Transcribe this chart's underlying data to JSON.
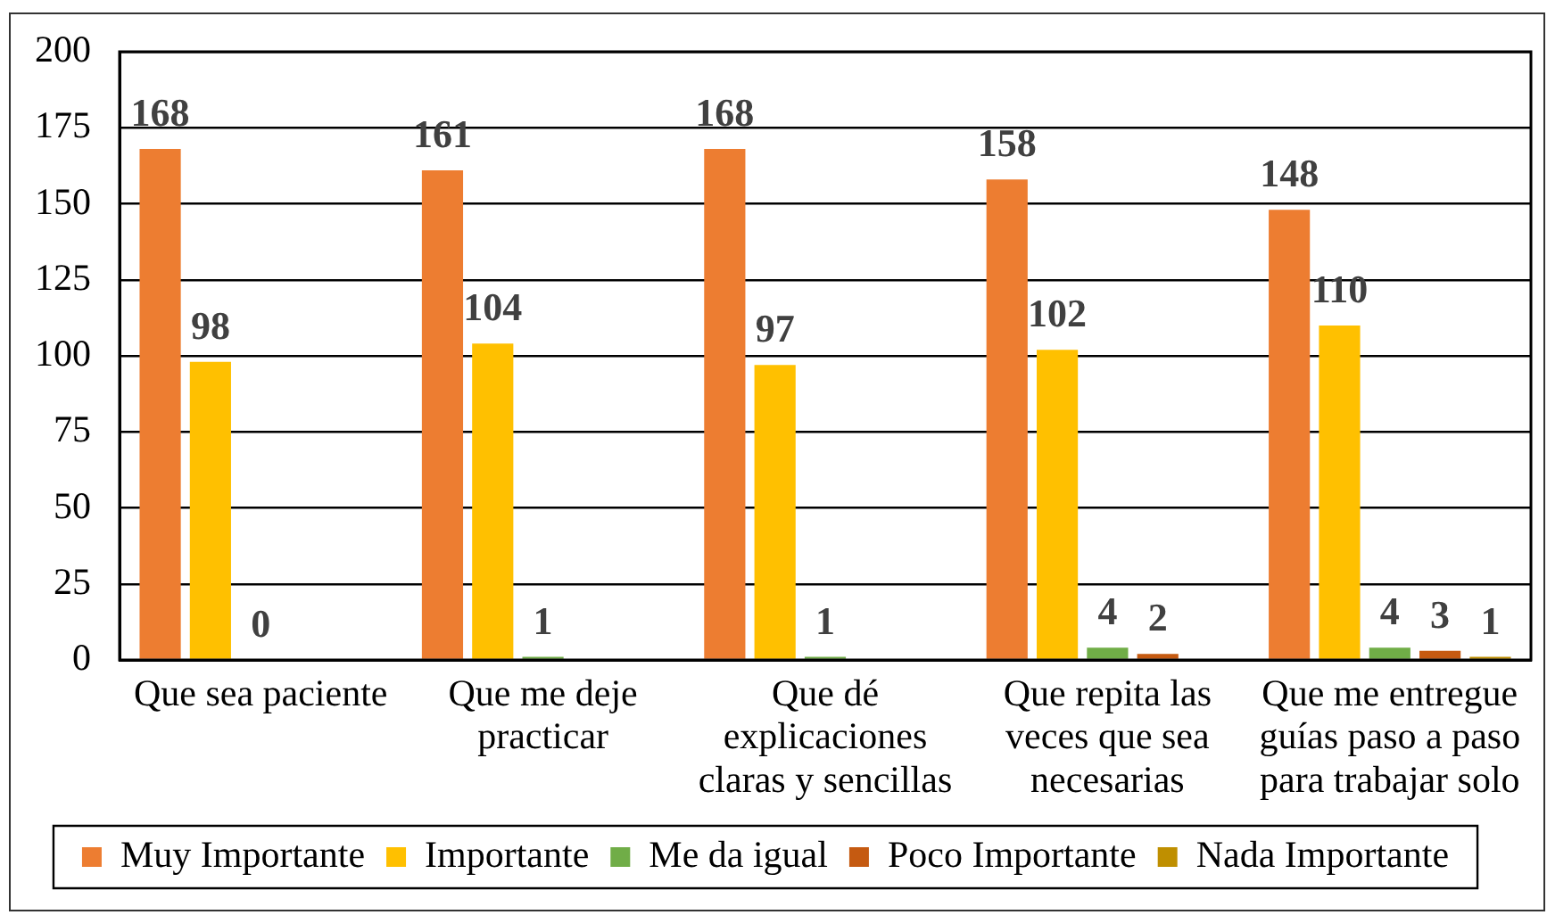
{
  "chart_data": {
    "type": "bar",
    "categories": [
      "Que sea paciente",
      "Que me deje practicar",
      "Que dé explicaciones claras y sencillas",
      "Que repita las veces que sea necesarias",
      "Que me entregue guías paso a paso para trabajar solo"
    ],
    "series": [
      {
        "name": "Muy Importante",
        "color": "#ed7d31",
        "values": [
          168,
          161,
          168,
          158,
          148
        ]
      },
      {
        "name": "Importante",
        "color": "#ffc000",
        "values": [
          98,
          104,
          97,
          102,
          110
        ]
      },
      {
        "name": "Me da igual",
        "color": "#70ad47",
        "values": [
          0,
          1,
          1,
          4,
          4
        ]
      },
      {
        "name": "Poco Importante",
        "color": "#c55a11",
        "values": [
          null,
          null,
          null,
          2,
          3
        ]
      },
      {
        "name": "Nada Importante",
        "color": "#bf8f00",
        "values": [
          null,
          null,
          null,
          null,
          1
        ]
      }
    ],
    "ylim": [
      0,
      200
    ],
    "yticks": [
      0,
      25,
      50,
      75,
      100,
      125,
      150,
      175,
      200
    ],
    "grid": "y",
    "legend": "bottom",
    "data_labels": true
  }
}
